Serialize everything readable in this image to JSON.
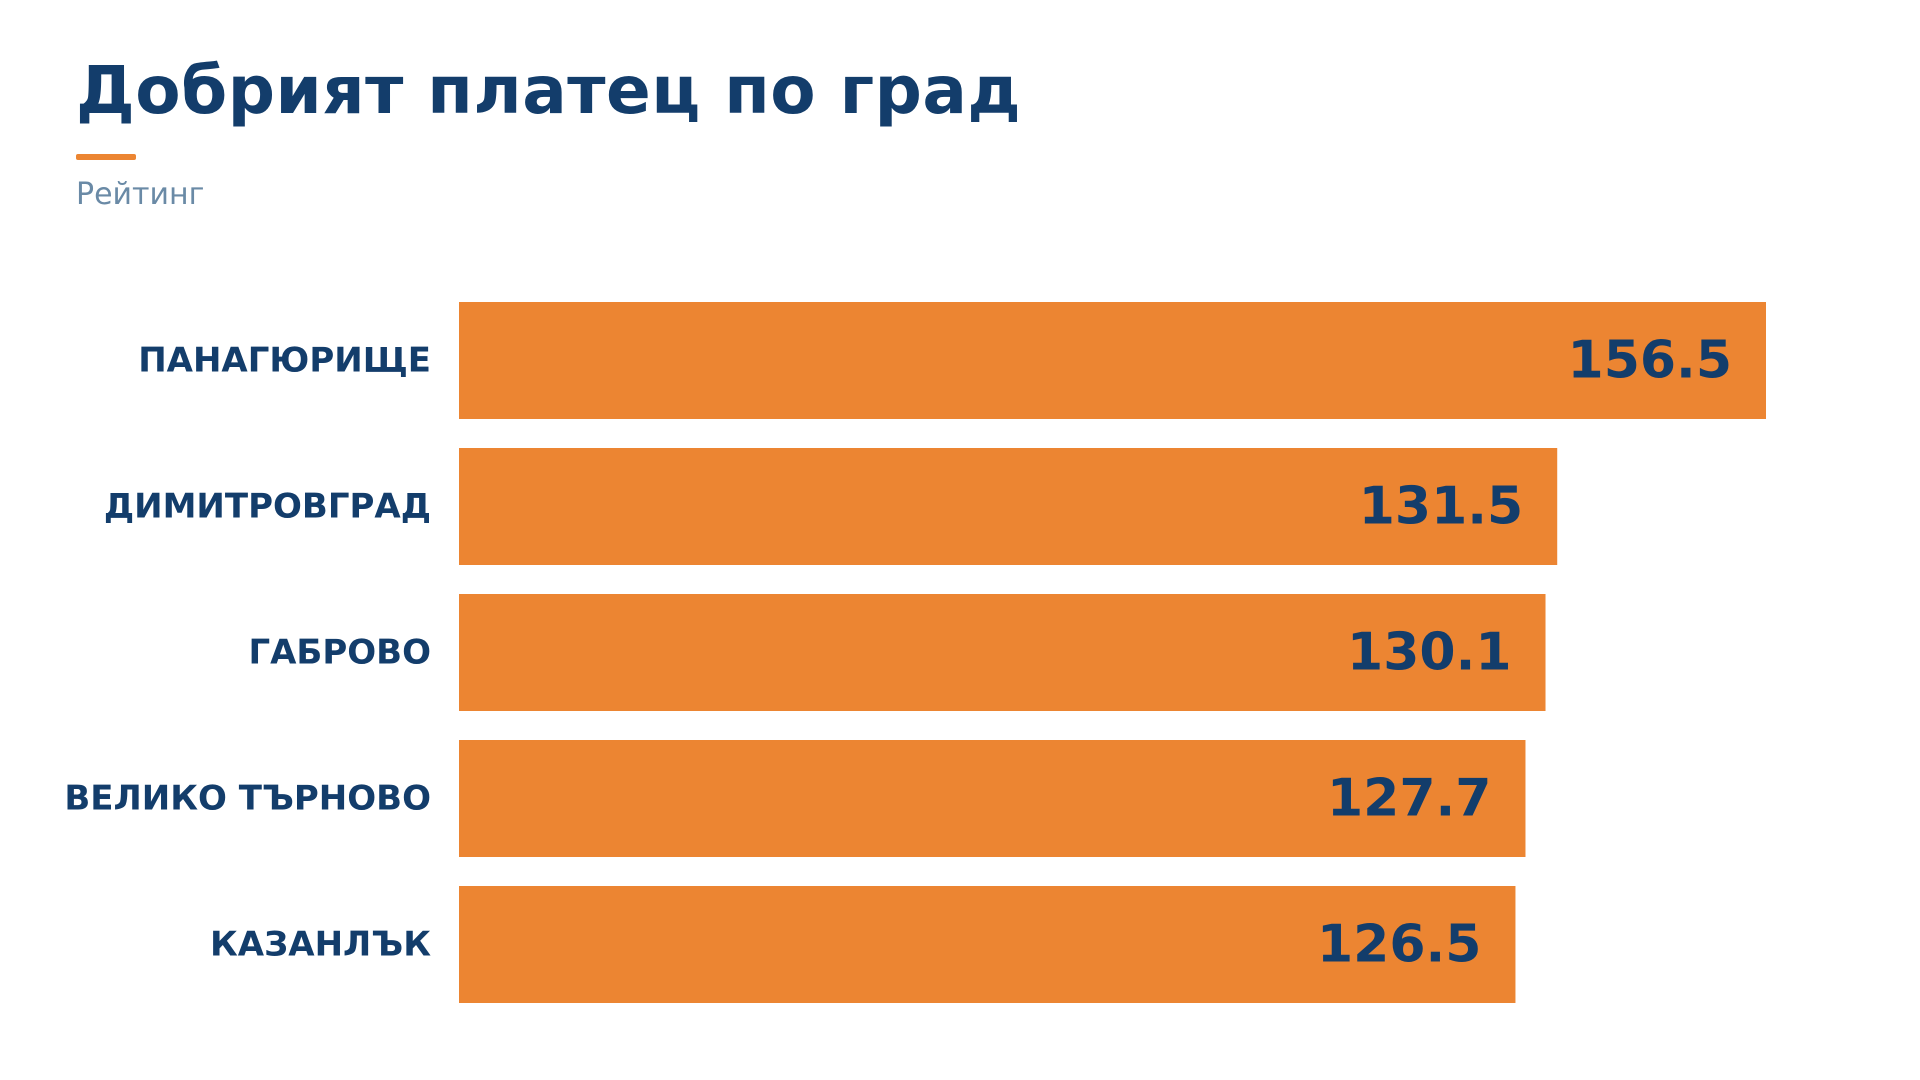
{
  "header": {
    "title": "Добрият платец по град",
    "subtitle": "Рейтинг"
  },
  "colors": {
    "bar": "#ec8532",
    "label": "#133d6b",
    "subtitle": "#6a8aa6",
    "accent": "#ec8532",
    "background": "#ffffff"
  },
  "chart_data": {
    "type": "bar",
    "orientation": "horizontal",
    "title": "Добрият платец по град",
    "subtitle": "Рейтинг",
    "categories": [
      "ПАНАГЮРИЩЕ",
      "ДИМИТРОВГРАД",
      "ГАБРОВО",
      "ВЕЛИКО ТЪРНОВО",
      "КАЗАНЛЪК"
    ],
    "values": [
      156.5,
      131.5,
      130.1,
      127.7,
      126.5
    ],
    "data_labels": [
      "156.5",
      "131.5",
      "130.1",
      "127.7",
      "126.5"
    ],
    "xlim": [
      0,
      156.5
    ],
    "grid": false,
    "legend": "none"
  }
}
